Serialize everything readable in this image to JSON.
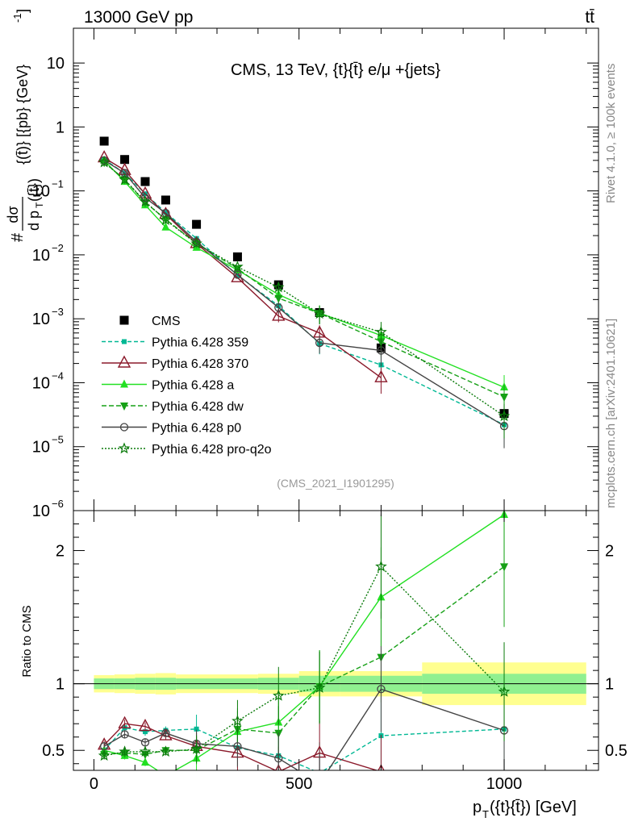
{
  "header": {
    "energy_label": "13000 GeV pp",
    "process_label": "tt̄"
  },
  "side_labels": {
    "rivet": "Rivet 4.1.0, ≥ 100k events",
    "site": "mcplots.cern.ch [arXiv:2401.10621]"
  },
  "watermark": "(CMS_2021_I1901295)",
  "colors": {
    "cms": "#000000",
    "p359": "#00b894",
    "p370": "#8b1a2b",
    "pa": "#22e022",
    "pdw": "#16a016",
    "pp0": "#444444",
    "pq2o": "#0a7a0a",
    "band_outer": "#ffff90",
    "band_inner": "#90f090"
  },
  "chart_data": [
    {
      "type": "scatter",
      "title": "CMS, 13 TeV, {t}{t̄} e/μ +{jets}",
      "ylabel": "#dσ/dp_T({t}) [{pb} {GeV}^-1]",
      "ylabel_parts": {
        "hash": "#",
        "num": "dσ",
        "den": "d p",
        "den_sub": "T",
        "den_arg": "({t̄})",
        "unit": "{(t̄)} [{pb} {GeV}",
        "unit_exp": "-1",
        "unit_close": "]"
      },
      "yscale": "log",
      "ylim": [
        1e-06,
        35
      ],
      "xlim": [
        -50,
        1230
      ],
      "y_ticks": [
        {
          "v": 1e-06,
          "base": "10",
          "exp": "−6"
        },
        {
          "v": 1e-05,
          "base": "10",
          "exp": "−5"
        },
        {
          "v": 0.0001,
          "base": "10",
          "exp": "−4"
        },
        {
          "v": 0.001,
          "base": "10",
          "exp": "−3"
        },
        {
          "v": 0.01,
          "base": "10",
          "exp": "−2"
        },
        {
          "v": 0.1,
          "base": "10",
          "exp": "−1"
        },
        {
          "v": 1,
          "base": "1",
          "exp": ""
        },
        {
          "v": 10,
          "base": "10",
          "exp": ""
        }
      ],
      "x": [
        25,
        75,
        125,
        175,
        250,
        350,
        450,
        550,
        700,
        1000
      ],
      "series": [
        {
          "key": "cms",
          "name": "CMS",
          "values": [
            0.6,
            0.31,
            0.14,
            0.072,
            0.03,
            0.0093,
            0.0034,
            0.00125,
            0.00035,
            3.3e-05
          ]
        },
        {
          "key": "p359",
          "name": "Pythia 6.428 359",
          "values": [
            0.31,
            0.19,
            0.09,
            0.046,
            0.018,
            0.0048,
            0.0016,
            0.00041,
            0.00019,
            2.2e-05
          ]
        },
        {
          "key": "p370",
          "name": "Pythia 6.428 370",
          "values": [
            0.33,
            0.21,
            0.09,
            0.043,
            0.015,
            0.0044,
            0.0011,
            0.0006,
            0.00012,
            null
          ]
        },
        {
          "key": "pa",
          "name": "Pythia 6.428 a",
          "values": [
            0.3,
            0.14,
            0.06,
            0.027,
            0.013,
            0.0058,
            0.0024,
            0.00123,
            0.00055,
            8.5e-05
          ]
        },
        {
          "key": "pdw",
          "name": "Pythia 6.428 dw",
          "values": [
            0.28,
            0.15,
            0.066,
            0.036,
            0.015,
            0.0061,
            0.0021,
            0.00122,
            0.00044,
            6e-05
          ]
        },
        {
          "key": "pp0",
          "name": "Pythia 6.428 p0",
          "values": [
            0.3,
            0.19,
            0.078,
            0.045,
            0.016,
            0.0049,
            0.0015,
            0.00042,
            0.00032,
            2.1e-05
          ]
        },
        {
          "key": "pq2o",
          "name": "Pythia 6.428 pro-q2o",
          "values": [
            0.28,
            0.15,
            0.068,
            0.035,
            0.015,
            0.0065,
            0.0031,
            0.0012,
            0.00062,
            3e-05
          ]
        }
      ]
    },
    {
      "type": "line",
      "ylabel": "Ratio to CMS",
      "xlabel": "p_T({t}{t̄}) [GeV]",
      "xlabel_parts": {
        "p": "p",
        "sub": "T",
        "rest": "({t}{t̄}) [GeV]"
      },
      "ylim": [
        0.35,
        2.3
      ],
      "xlim": [
        -50,
        1230
      ],
      "x_ticks": [
        {
          "v": 0,
          "label": "0"
        },
        {
          "v": 500,
          "label": "500"
        },
        {
          "v": 1000,
          "label": "1000"
        }
      ],
      "y_ticks": [
        {
          "v": 0.5,
          "label": "0.5"
        },
        {
          "v": 1,
          "label": "1"
        },
        {
          "v": 2,
          "label": "2"
        }
      ],
      "x": [
        25,
        75,
        125,
        175,
        250,
        350,
        450,
        550,
        700,
        1000
      ],
      "bands": {
        "edges": [
          0,
          50,
          100,
          150,
          200,
          300,
          400,
          500,
          600,
          800,
          1200
        ],
        "outer": [
          0.065,
          0.07,
          0.075,
          0.08,
          0.07,
          0.07,
          0.075,
          0.095,
          0.095,
          0.16
        ],
        "inner": [
          0.04,
          0.04,
          0.045,
          0.045,
          0.04,
          0.04,
          0.045,
          0.06,
          0.06,
          0.075
        ]
      },
      "series": [
        {
          "key": "p359",
          "values": [
            0.5,
            0.67,
            0.64,
            0.65,
            0.66,
            0.52,
            0.46,
            0.33,
            0.61,
            0.66
          ]
        },
        {
          "key": "p370",
          "values": [
            0.54,
            0.7,
            0.68,
            0.61,
            0.53,
            0.48,
            0.34,
            0.48,
            0.34,
            null
          ]
        },
        {
          "key": "pa",
          "values": [
            0.5,
            0.46,
            0.41,
            0.31,
            0.44,
            0.64,
            0.71,
            0.98,
            1.65,
            2.27
          ]
        },
        {
          "key": "pdw",
          "values": [
            0.47,
            0.48,
            0.47,
            0.5,
            0.5,
            0.66,
            0.63,
            0.98,
            1.2,
            1.88
          ]
        },
        {
          "key": "pp0",
          "values": [
            0.53,
            0.62,
            0.56,
            0.63,
            0.55,
            0.53,
            0.44,
            0.25,
            0.96,
            0.65
          ]
        },
        {
          "key": "pq2o",
          "values": [
            0.46,
            0.49,
            0.49,
            0.49,
            0.51,
            0.72,
            0.91,
            0.97,
            1.88,
            0.94
          ]
        }
      ]
    }
  ]
}
